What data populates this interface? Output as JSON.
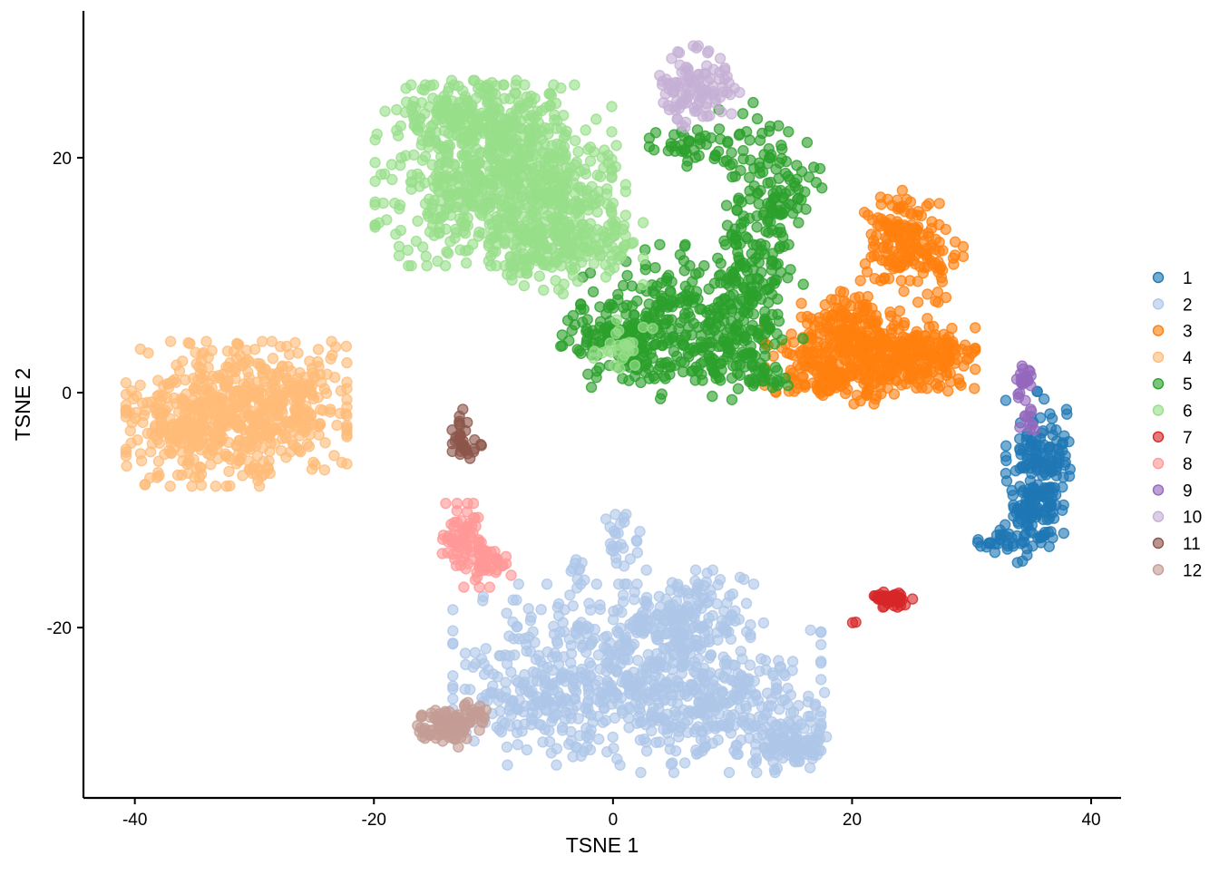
{
  "chart_data": {
    "type": "scatter",
    "title": "",
    "xlabel": "TSNE 1",
    "ylabel": "TSNE 2",
    "xlim": [
      -44.3,
      42.5
    ],
    "ylim": [
      -34.5,
      32.5
    ],
    "xticks": [
      -40,
      -20,
      0,
      20,
      40
    ],
    "yticks": [
      -20,
      0,
      20
    ],
    "xtick_labels": [
      "-40",
      "-20",
      "0",
      "20",
      "40"
    ],
    "ytick_labels": [
      "-20",
      "0",
      "20"
    ],
    "grid": false,
    "legend_position": "right",
    "series": [
      {
        "name": "1",
        "color": "#1F77B4",
        "cluster": {
          "regions": [
            {
              "cx": 35.5,
              "cy": -6.5,
              "sx": 1.2,
              "sy": 3.0,
              "n": 150
            },
            {
              "cx": 35.0,
              "cy": -10.5,
              "sx": 1.0,
              "sy": 1.8,
              "n": 60
            },
            {
              "cx": 32.5,
              "cy": -12.8,
              "sx": 0.9,
              "sy": 0.5,
              "n": 25
            },
            {
              "cx": 37.3,
              "cy": -6.0,
              "sx": 0.6,
              "sy": 1.0,
              "n": 20
            }
          ]
        }
      },
      {
        "name": "2",
        "color": "#AEC7E8",
        "cluster": {
          "regions": [
            {
              "cx": 2.0,
              "cy": -24.0,
              "sx": 7.0,
              "sy": 3.5,
              "n": 600
            },
            {
              "cx": 6.0,
              "cy": -19.5,
              "sx": 2.5,
              "sy": 2.0,
              "n": 150
            },
            {
              "cx": 10.0,
              "cy": -27.5,
              "sx": 3.5,
              "sy": 2.2,
              "n": 150
            },
            {
              "cx": 15.0,
              "cy": -30.0,
              "sx": 1.5,
              "sy": 0.9,
              "n": 90
            },
            {
              "cx": -6.5,
              "cy": -26.0,
              "sx": 3.0,
              "sy": 1.8,
              "n": 90
            },
            {
              "cx": 0.5,
              "cy": -13.0,
              "sx": 0.9,
              "sy": 1.2,
              "n": 25
            },
            {
              "cx": -3.0,
              "cy": -15.5,
              "sx": 0.6,
              "sy": 1.0,
              "n": 10
            }
          ]
        }
      },
      {
        "name": "3",
        "color": "#FF7F0E",
        "cluster": {
          "regions": [
            {
              "cx": 24.0,
              "cy": 13.5,
              "sx": 1.5,
              "sy": 1.8,
              "n": 120
            },
            {
              "cx": 26.0,
              "cy": 11.0,
              "sx": 1.5,
              "sy": 1.5,
              "n": 60
            },
            {
              "cx": 21.5,
              "cy": 3.0,
              "sx": 4.0,
              "sy": 1.8,
              "n": 380
            },
            {
              "cx": 19.5,
              "cy": 6.0,
              "sx": 1.7,
              "sy": 1.2,
              "n": 80
            },
            {
              "cx": 17.0,
              "cy": 1.2,
              "sx": 1.6,
              "sy": 0.9,
              "n": 50
            },
            {
              "cx": 27.0,
              "cy": 3.0,
              "sx": 1.5,
              "sy": 1.2,
              "n": 80
            }
          ]
        }
      },
      {
        "name": "4",
        "color": "#FFBB78",
        "cluster": {
          "regions": [
            {
              "cx": -31.5,
              "cy": -1.8,
              "sx": 4.2,
              "sy": 2.8,
              "n": 540
            },
            {
              "cx": -36.5,
              "cy": -3.0,
              "sx": 1.6,
              "sy": 2.2,
              "n": 80
            },
            {
              "cx": -26.5,
              "cy": 0.3,
              "sx": 1.5,
              "sy": 1.8,
              "n": 80
            }
          ]
        }
      },
      {
        "name": "5",
        "color": "#2CA02C",
        "cluster": {
          "regions": [
            {
              "cx": 5.0,
              "cy": 6.0,
              "sx": 3.5,
              "sy": 3.0,
              "n": 250
            },
            {
              "cx": 12.0,
              "cy": 17.0,
              "sx": 1.6,
              "sy": 3.5,
              "n": 120
            },
            {
              "cx": 12.5,
              "cy": 10.0,
              "sx": 1.6,
              "sy": 2.5,
              "n": 80
            },
            {
              "cx": 10.0,
              "cy": 4.0,
              "sx": 2.2,
              "sy": 1.8,
              "n": 100
            },
            {
              "cx": 7.0,
              "cy": 21.0,
              "sx": 1.8,
              "sy": 0.8,
              "n": 40
            },
            {
              "cx": 1.5,
              "cy": 4.5,
              "sx": 2.2,
              "sy": 1.5,
              "n": 80
            },
            {
              "cx": -1.5,
              "cy": 4.8,
              "sx": 1.5,
              "sy": 0.9,
              "n": 25
            },
            {
              "cx": 15.5,
              "cy": 18.0,
              "sx": 0.9,
              "sy": 1.5,
              "n": 25
            },
            {
              "cx": 12.0,
              "cy": 1.5,
              "sx": 1.2,
              "sy": 0.8,
              "n": 25
            }
          ]
        }
      },
      {
        "name": "6",
        "color": "#98DF8A",
        "cluster": {
          "regions": [
            {
              "cx": -10.0,
              "cy": 18.5,
              "sx": 4.5,
              "sy": 3.5,
              "n": 650
            },
            {
              "cx": -11.5,
              "cy": 23.5,
              "sx": 3.0,
              "sy": 1.4,
              "n": 160
            },
            {
              "cx": -4.0,
              "cy": 17.0,
              "sx": 2.3,
              "sy": 2.5,
              "n": 160
            },
            {
              "cx": -6.0,
              "cy": 11.5,
              "sx": 2.0,
              "sy": 1.5,
              "n": 100
            },
            {
              "cx": -1.0,
              "cy": 12.5,
              "sx": 1.6,
              "sy": 1.5,
              "n": 50
            },
            {
              "cx": 0.5,
              "cy": 4.0,
              "sx": 1.4,
              "sy": 1.0,
              "n": 25
            }
          ]
        }
      },
      {
        "name": "7",
        "color": "#D62728",
        "cluster": {
          "regions": [
            {
              "cx": 23.3,
              "cy": -17.6,
              "sx": 0.8,
              "sy": 0.3,
              "n": 50
            },
            {
              "cx": 20.0,
              "cy": -19.3,
              "sx": 0.2,
              "sy": 0.2,
              "n": 2
            }
          ]
        }
      },
      {
        "name": "8",
        "color": "#FF9896",
        "cluster": {
          "regions": [
            {
              "cx": -12.3,
              "cy": -12.5,
              "sx": 0.9,
              "sy": 1.4,
              "n": 70
            },
            {
              "cx": -10.5,
              "cy": -14.8,
              "sx": 0.9,
              "sy": 0.8,
              "n": 40
            }
          ]
        }
      },
      {
        "name": "9",
        "color": "#9467BD",
        "cluster": {
          "regions": [
            {
              "cx": 34.4,
              "cy": 1.0,
              "sx": 0.35,
              "sy": 0.9,
              "n": 22
            },
            {
              "cx": 34.8,
              "cy": -2.0,
              "sx": 0.35,
              "sy": 0.6,
              "n": 10
            }
          ]
        }
      },
      {
        "name": "10",
        "color": "#C5B0D5",
        "cluster": {
          "regions": [
            {
              "cx": 6.5,
              "cy": 26.0,
              "sx": 1.3,
              "sy": 1.6,
              "n": 90
            },
            {
              "cx": 9.0,
              "cy": 25.5,
              "sx": 0.9,
              "sy": 0.9,
              "n": 20
            }
          ]
        }
      },
      {
        "name": "11",
        "color": "#8C564B",
        "cluster": {
          "regions": [
            {
              "cx": -12.8,
              "cy": -3.8,
              "sx": 0.4,
              "sy": 1.1,
              "n": 22
            },
            {
              "cx": -12.0,
              "cy": -4.6,
              "sx": 0.6,
              "sy": 0.4,
              "n": 12
            }
          ]
        }
      },
      {
        "name": "12",
        "color": "#C49C94",
        "cluster": {
          "regions": [
            {
              "cx": -14.0,
              "cy": -28.4,
              "sx": 1.2,
              "sy": 0.8,
              "n": 80
            },
            {
              "cx": -11.8,
              "cy": -27.5,
              "sx": 0.6,
              "sy": 0.7,
              "n": 20
            }
          ]
        }
      }
    ]
  }
}
